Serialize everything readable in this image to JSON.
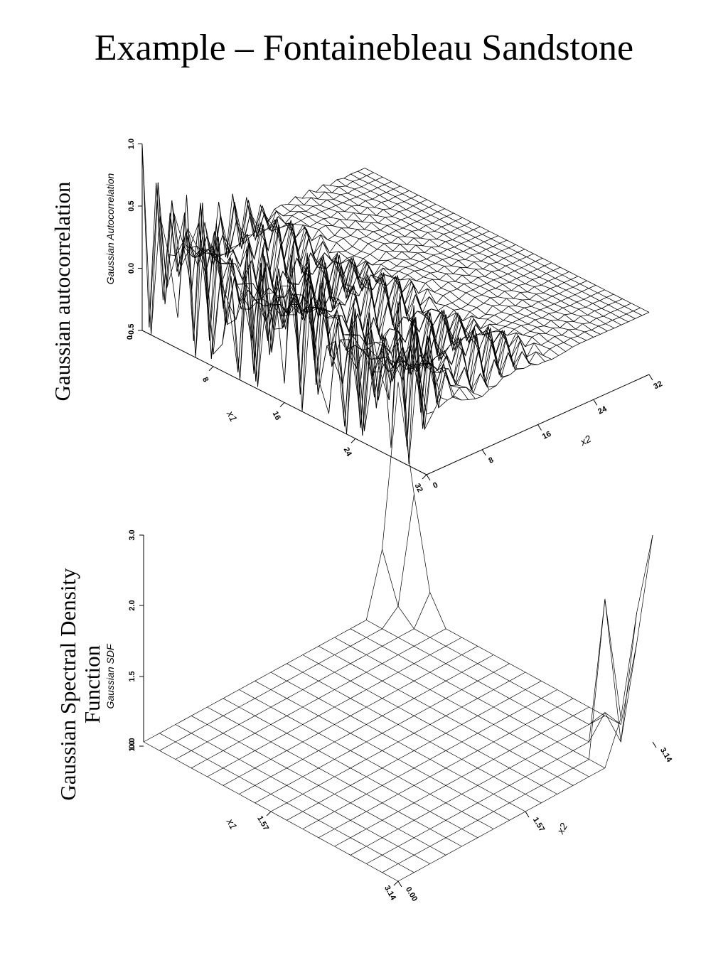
{
  "title": "Example – Fontainebleau Sandstone",
  "side_labels": {
    "top": "Gaussian autocorrelation",
    "bottom_line1": "Gaussian Spectral Density",
    "bottom_line2": "Function"
  },
  "chart_data": [
    {
      "type": "surface",
      "zlabel": "Gaussian Autocorrelation",
      "xlabel": "x1",
      "ylabel": "x2",
      "z_ticks": [
        "-0.5",
        "0.0",
        "0.5",
        "1.0"
      ],
      "z_base_tick": "0",
      "x1_ticks": [
        "8",
        "16",
        "24",
        "32"
      ],
      "x2_ticks": [
        "0",
        "8",
        "16",
        "24",
        "32"
      ],
      "zlim": [
        -0.5,
        1.0
      ],
      "x1_range": [
        0,
        32
      ],
      "x2_range": [
        0,
        32
      ],
      "grid": true,
      "description": "oscillating autocorrelation; peak 1.0 at origin, decaying toward 0 along x2"
    },
    {
      "type": "surface",
      "zlabel": "Gaussian SDF",
      "xlabel": "x1",
      "ylabel": "x2",
      "z_ticks": [
        "1.0",
        "1.5",
        "2.0",
        "3.0"
      ],
      "z_base_tick": "0.0",
      "x1_ticks": [
        "0.00",
        "1.57",
        "3.14"
      ],
      "x2_ticks": [
        "0.00",
        "1.57",
        "3.14"
      ],
      "x1_range": [
        0,
        3.14
      ],
      "x2_range": [
        0,
        3.14
      ],
      "zlim": [
        0,
        3.0
      ],
      "grid": true,
      "peaks": [
        {
          "x1": 0.0,
          "x2": 3.14,
          "value": 3.0
        },
        {
          "x1": 0.0,
          "x2": 2.9,
          "value": 2.6
        },
        {
          "x1": 3.14,
          "x2": 3.14,
          "value": 3.0
        },
        {
          "x1": 2.9,
          "x2": 3.14,
          "value": 1.7
        }
      ]
    }
  ]
}
